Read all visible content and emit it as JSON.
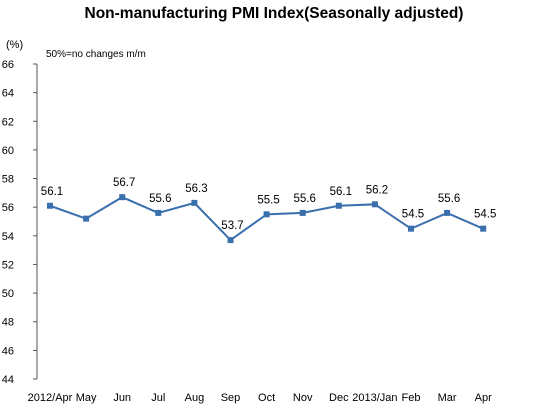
{
  "title": "Non-manufacturing PMI Index(Seasonally adjusted)",
  "unit_label": "(%)",
  "note": "50%=no changes m/m",
  "colors": {
    "series": "#3a6fad",
    "axis": "#555555"
  },
  "chart_data": {
    "type": "line",
    "title": "Non-manufacturing PMI Index(Seasonally adjusted)",
    "ylabel": "(%)",
    "annotation": "50%=no changes m/m",
    "categories": [
      "2012/Apr",
      "May",
      "Jun",
      "Jul",
      "Aug",
      "Sep",
      "Oct",
      "Nov",
      "Dec",
      "2013/Jan",
      "Feb",
      "Mar",
      "Apr"
    ],
    "values": [
      56.1,
      55.2,
      56.7,
      55.6,
      56.3,
      53.7,
      55.5,
      55.6,
      56.1,
      56.2,
      54.5,
      55.6,
      54.5
    ],
    "data_labels": [
      "56.1",
      "",
      "56.7",
      "55.6",
      "56.3",
      "53.7",
      "55.5",
      "55.6",
      "56.1",
      "56.2",
      "54.5",
      "55.6",
      "54.5"
    ],
    "ylim": [
      44,
      66
    ],
    "yticks": [
      44,
      46,
      48,
      50,
      52,
      54,
      56,
      58,
      60,
      62,
      64,
      66
    ],
    "grid": false,
    "legend": "none"
  }
}
